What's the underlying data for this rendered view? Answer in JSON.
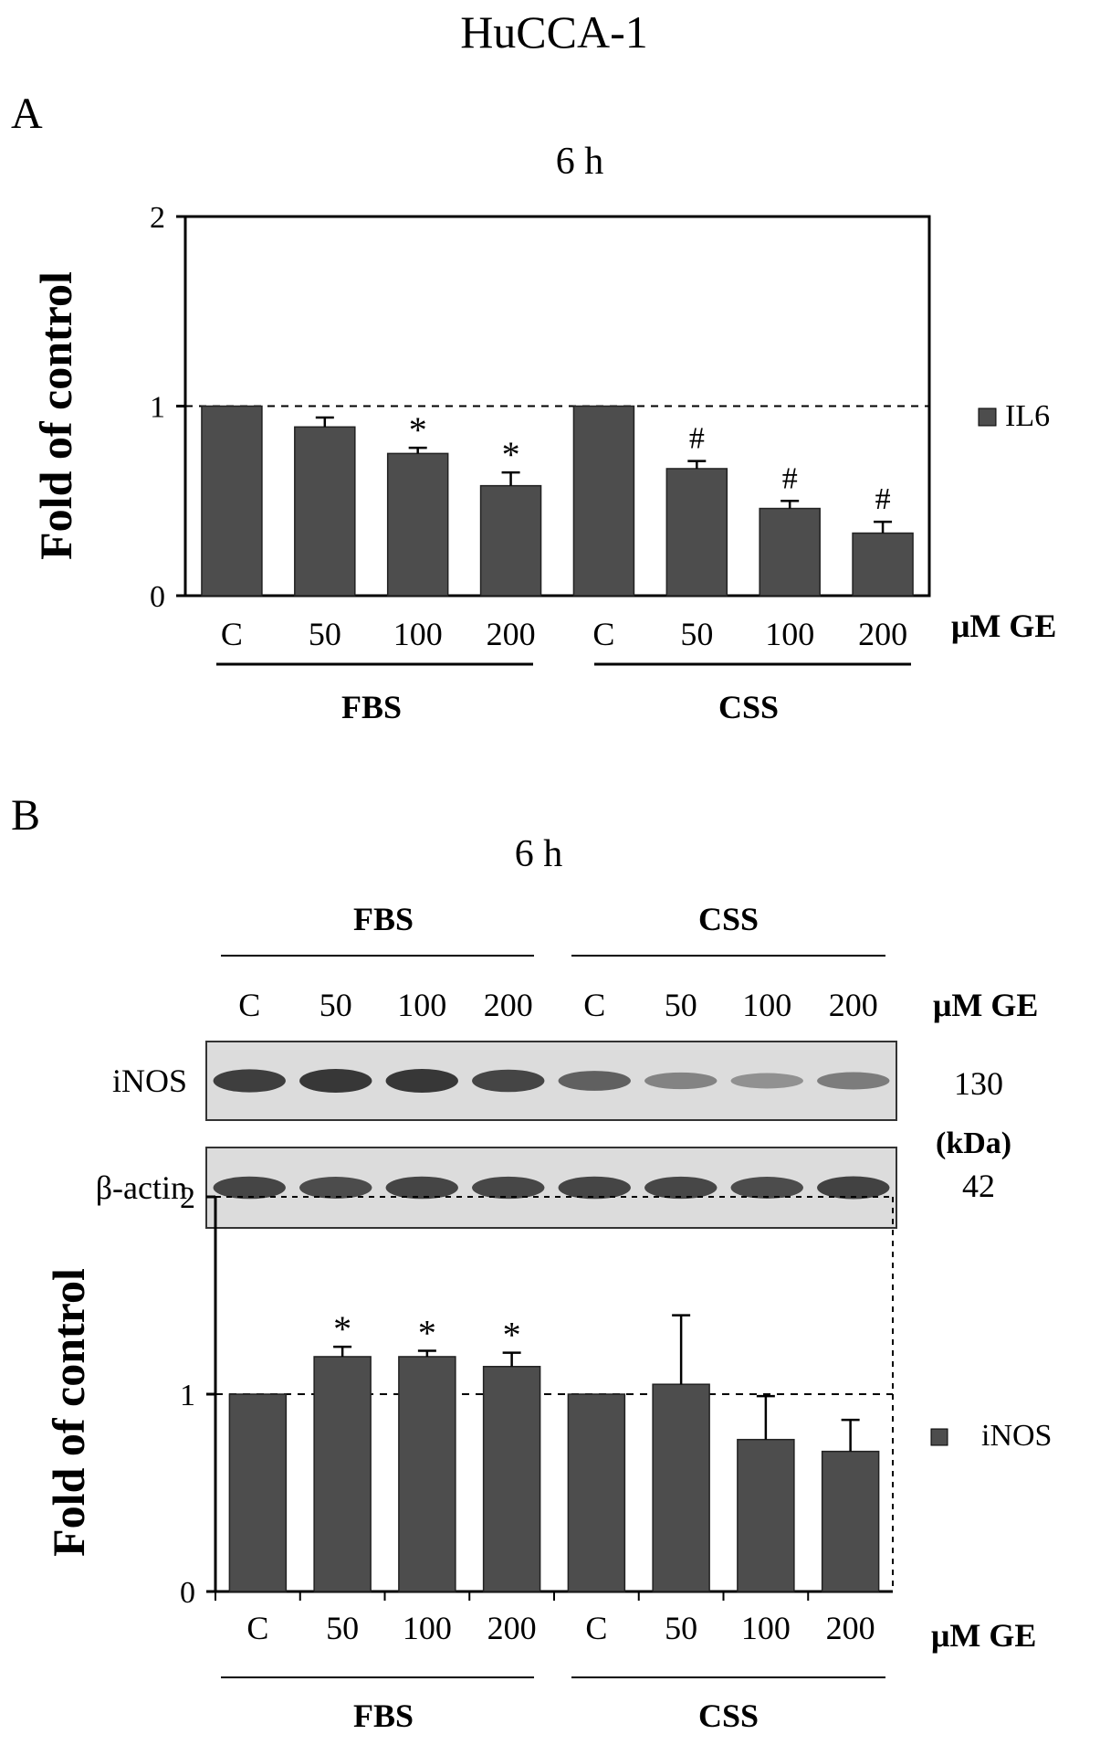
{
  "figure_title": "HuCCA-1",
  "panels": {
    "a_label": "A",
    "b_label": "B"
  },
  "colors": {
    "bar": "#4d4d4d",
    "axis": "#000000"
  },
  "chart_data": [
    {
      "type": "bar",
      "title": "6 h",
      "ylabel": "Fold of control",
      "xlabel": "μM GE",
      "ylim": [
        0,
        2
      ],
      "yticks": [
        "0",
        "1",
        "2"
      ],
      "categories": [
        "C",
        "50",
        "100",
        "200",
        "C",
        "50",
        "100",
        "200"
      ],
      "groups": [
        "FBS",
        "CSS"
      ],
      "series": [
        {
          "name": "IL6",
          "values": [
            1.0,
            0.89,
            0.75,
            0.58,
            1.0,
            0.67,
            0.46,
            0.33
          ],
          "errors": [
            0,
            0.05,
            0.03,
            0.07,
            0,
            0.04,
            0.04,
            0.06
          ]
        }
      ],
      "annotations": [
        "",
        "",
        "*",
        "*",
        "",
        "#",
        "#",
        "#"
      ],
      "reference_line": 1,
      "legend_position": "right"
    },
    {
      "type": "bar",
      "title": "6 h",
      "ylabel": "Fold of control",
      "xlabel": "μM GE",
      "ylim": [
        0,
        2
      ],
      "yticks": [
        "0",
        "1",
        "2"
      ],
      "categories": [
        "C",
        "50",
        "100",
        "200",
        "C",
        "50",
        "100",
        "200"
      ],
      "groups": [
        "FBS",
        "CSS"
      ],
      "series": [
        {
          "name": "iNOS",
          "values": [
            1.0,
            1.19,
            1.19,
            1.14,
            1.0,
            1.05,
            0.77,
            0.71
          ],
          "errors": [
            0,
            0.05,
            0.03,
            0.07,
            0,
            0.35,
            0.22,
            0.16
          ]
        }
      ],
      "annotations": [
        "",
        "*",
        "*",
        "*",
        "",
        "",
        "",
        ""
      ],
      "reference_line": 1,
      "legend_position": "right"
    }
  ],
  "blot": {
    "title": "6 h",
    "groups": [
      "FBS",
      "CSS"
    ],
    "lanes": [
      "C",
      "50",
      "100",
      "200",
      "C",
      "50",
      "100",
      "200"
    ],
    "unit_label": "μM GE",
    "rows": [
      {
        "label": "iNOS",
        "kda": "130",
        "intensity": [
          0.95,
          1.0,
          1.0,
          0.9,
          0.7,
          0.45,
          0.35,
          0.5
        ]
      },
      {
        "label": "β-actin",
        "kda": "42",
        "intensity": [
          0.9,
          0.85,
          0.9,
          0.88,
          0.9,
          0.88,
          0.85,
          0.92
        ]
      }
    ],
    "kda_unit": "(kDa)"
  }
}
